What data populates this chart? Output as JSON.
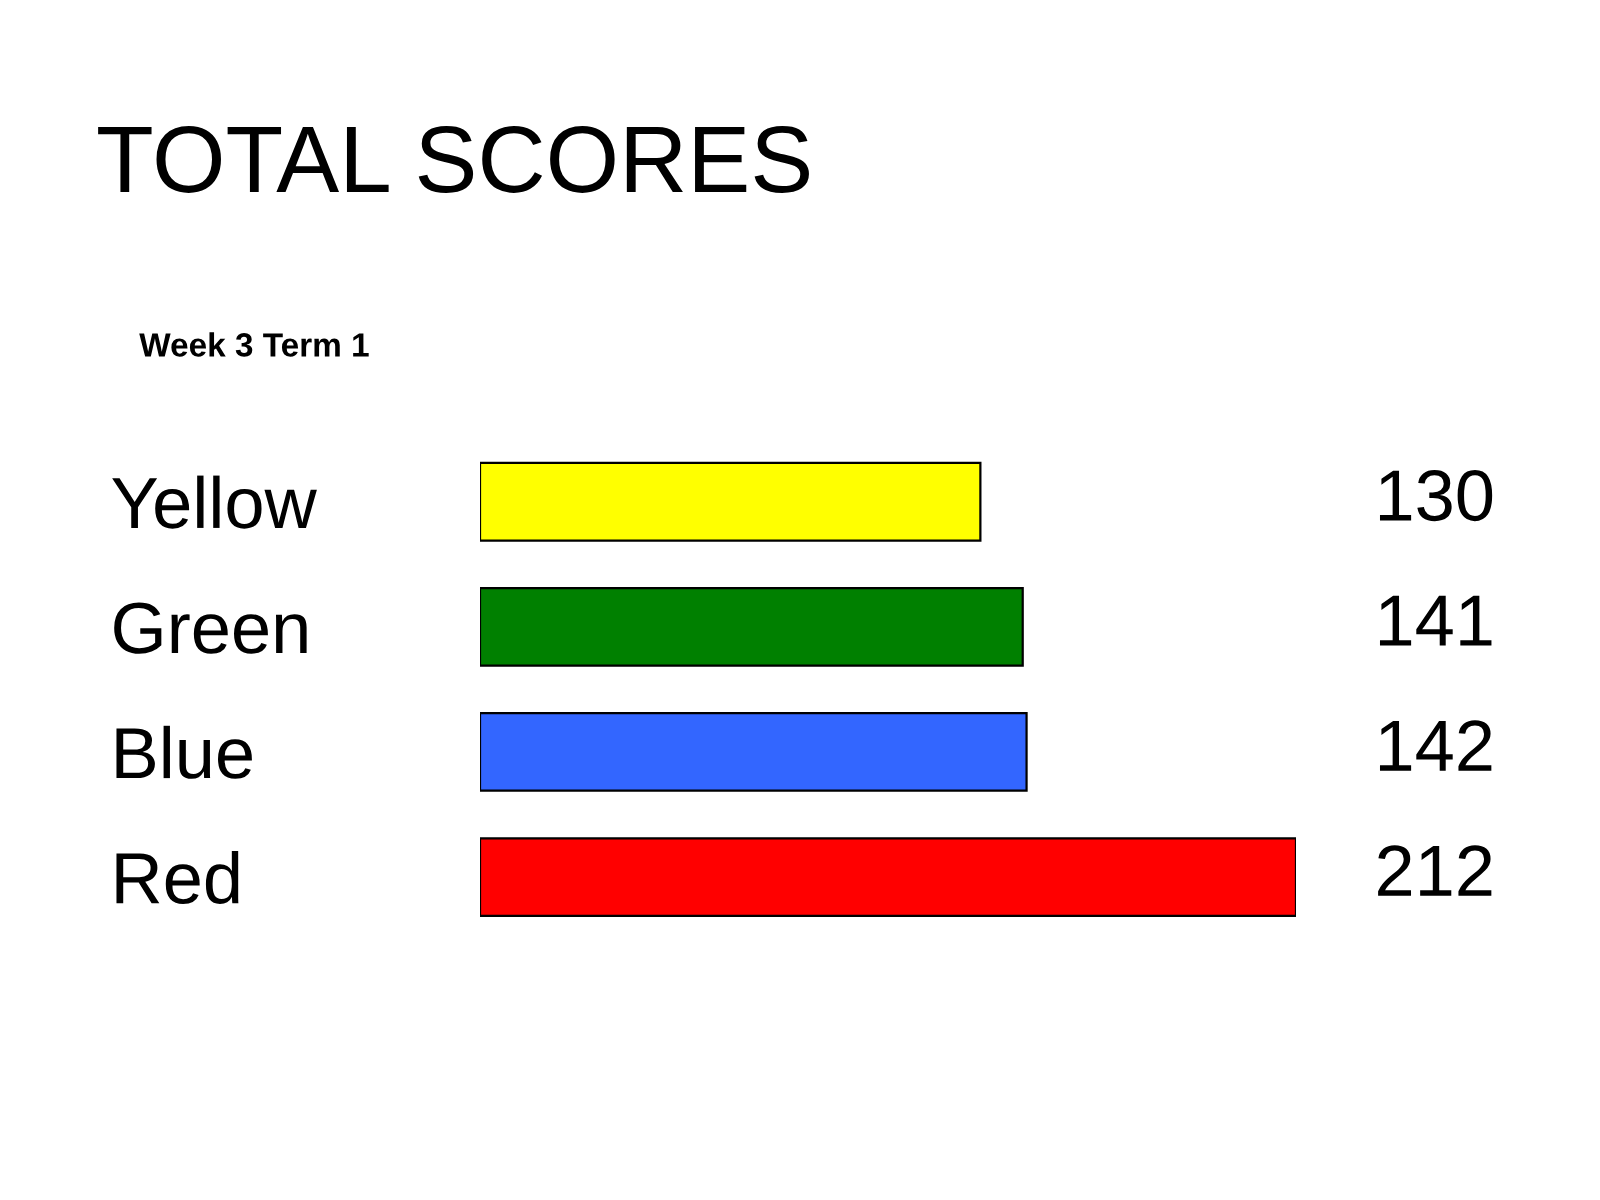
{
  "chart_data": {
    "type": "bar",
    "orientation": "horizontal",
    "title": "TOTAL SCORES",
    "subtitle": "Week 3 Term 1",
    "data_labels": true,
    "categories": [
      "Yellow",
      "Green",
      "Blue",
      "Red"
    ],
    "values": [
      130,
      141,
      142,
      212
    ],
    "colors": [
      "#ffff00",
      "#008000",
      "#3366ff",
      "#ff0000"
    ],
    "grid": false,
    "legend": false
  }
}
